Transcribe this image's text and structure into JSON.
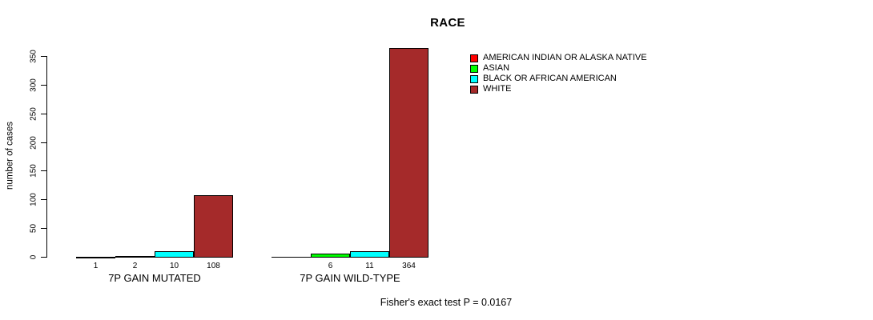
{
  "chart_data": {
    "type": "bar",
    "title": "RACE",
    "ylabel": "number of cases",
    "xlabel": "",
    "ylim": [
      0,
      350
    ],
    "yticks": [
      0,
      50,
      100,
      150,
      200,
      250,
      300,
      350
    ],
    "grid": false,
    "legend_position": "top-right-inside",
    "categories": [
      "7P GAIN MUTATED",
      "7P GAIN WILD-TYPE"
    ],
    "series": [
      {
        "name": "AMERICAN INDIAN OR ALASKA NATIVE",
        "color": "#FF0000",
        "values": [
          1,
          0
        ]
      },
      {
        "name": "ASIAN",
        "color": "#00FF00",
        "values": [
          2,
          6
        ]
      },
      {
        "name": "BLACK OR AFRICAN AMERICAN",
        "color": "#00FFFF",
        "values": [
          10,
          11
        ]
      },
      {
        "name": "WHITE",
        "color": "#A52A2A",
        "values": [
          108,
          364
        ]
      }
    ],
    "bar_value_labels": [
      [
        "1",
        "2",
        "10",
        "108"
      ],
      [
        "",
        "6",
        "11",
        "364"
      ]
    ],
    "footnote": "Fisher's exact test P = 0.0167",
    "colors": {
      "axis": "#000000",
      "text": "#000000",
      "background": "#FFFFFF",
      "bar_border": "#000000"
    }
  }
}
